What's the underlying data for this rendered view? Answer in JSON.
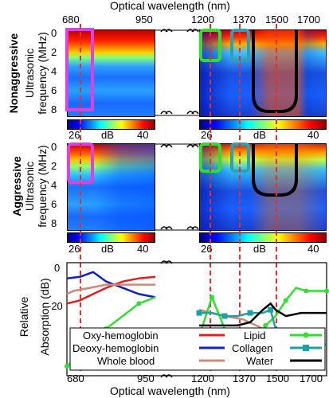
{
  "top_axis_title": "Optical wavelength (nm)",
  "bottom_axis_title": "Optical wavelength (nm)",
  "wavelength_ticks": [
    "680",
    "950",
    "1200",
    "1370",
    "1500",
    "1700"
  ],
  "panels": {
    "nonaggressive": {
      "group_label": "Nonaggressive",
      "ylabel_line1": "Ultrasonic",
      "ylabel_line2": "frequency (MHz)",
      "yticks": [
        "0",
        "2",
        "4",
        "6",
        "8"
      ],
      "colorbar_left": {
        "min": "26",
        "unit": "dB",
        "max": "40"
      },
      "colorbar_right": {
        "min": "26",
        "unit": "dB",
        "max": "40"
      }
    },
    "aggressive": {
      "group_label": "Aggressive",
      "ylabel_line1": "Ultrasonic",
      "ylabel_line2": "frequency (MHz)",
      "yticks": [
        "0",
        "2",
        "4",
        "6",
        "8"
      ],
      "colorbar_left": {
        "min": "26",
        "unit": "dB",
        "max": "40"
      },
      "colorbar_right": {
        "min": "26",
        "unit": "dB",
        "max": "40"
      }
    }
  },
  "colors": {
    "oxy": "#e02020",
    "deoxy": "#1020c0",
    "blood": "#d08878",
    "lipid": "#33dd33",
    "collagen": "#20a0a0",
    "water": "#000000",
    "dashed": "#e03030",
    "magenta_box": "#e040e0",
    "green_box": "#33dd33",
    "teal_box": "#30a0b0",
    "black_box": "#000000"
  },
  "chart_data": {
    "type": "line",
    "xlabel": "Optical wavelength (nm)",
    "ylabel": "Relative Absorption (dB)",
    "ylabel_line1": "Relative",
    "ylabel_line2": "Absorption (dB)",
    "yticks": [
      "0",
      "-20"
    ],
    "ylim": [
      -33,
      3
    ],
    "legend": [
      {
        "name": "Oxy-hemoglobin",
        "key": "oxy"
      },
      {
        "name": "Deoxy-hemoglobin",
        "key": "deoxy"
      },
      {
        "name": "Whole blood",
        "key": "blood"
      },
      {
        "name": "Lipid",
        "key": "lipid"
      },
      {
        "name": "Collagen",
        "key": "collagen"
      },
      {
        "name": "Water",
        "key": "water"
      }
    ],
    "series": [
      {
        "key": "oxy",
        "x": [
          680,
          720,
          760,
          800,
          850,
          900,
          950
        ],
        "y": [
          -10,
          -9,
          -7,
          -5,
          -3,
          -2,
          -1.5
        ]
      },
      {
        "key": "deoxy",
        "x": [
          680,
          720,
          760,
          800,
          850,
          900,
          950
        ],
        "y": [
          -2,
          -1.5,
          0,
          -3,
          -5,
          -7,
          -8
        ]
      },
      {
        "key": "blood",
        "x": [
          680,
          700,
          750,
          800,
          950,
          1200,
          1300,
          1370,
          1450,
          1500
        ],
        "y": [
          -7,
          -6,
          -5,
          -4,
          -4,
          -12,
          -14,
          -15,
          -18,
          -22
        ]
      },
      {
        "key": "lipid",
        "x": [
          680,
          700,
          730,
          760,
          800,
          850,
          900,
          950,
          1180,
          1210,
          1250,
          1300,
          1330,
          1370,
          1400,
          1430,
          1460,
          1500,
          1540,
          1580,
          1620,
          1660,
          1700
        ],
        "y": [
          -30,
          -28,
          -26,
          -22,
          -18,
          -14,
          -10,
          -8,
          -20,
          -18,
          -8,
          -18,
          -19,
          -19,
          -20,
          -21,
          -17,
          -14,
          -9,
          -5,
          -6,
          -6,
          -6
        ]
      },
      {
        "key": "collagen",
        "x": [
          1200,
          1250,
          1300,
          1350,
          1400,
          1450,
          1480,
          1500,
          1540,
          1600,
          1650,
          1700
        ],
        "y": [
          -13,
          -13,
          -14,
          -14,
          -13,
          -13,
          -12,
          -18,
          -25,
          -25,
          -23,
          -23
        ]
      },
      {
        "key": "water",
        "x": [
          1200,
          1250,
          1300,
          1350,
          1400,
          1450,
          1480,
          1500,
          1540,
          1600,
          1650,
          1700
        ],
        "y": [
          -17,
          -17,
          -17,
          -17,
          -16,
          -12,
          -10,
          -12,
          -14,
          -13,
          -13,
          -13
        ]
      }
    ]
  }
}
